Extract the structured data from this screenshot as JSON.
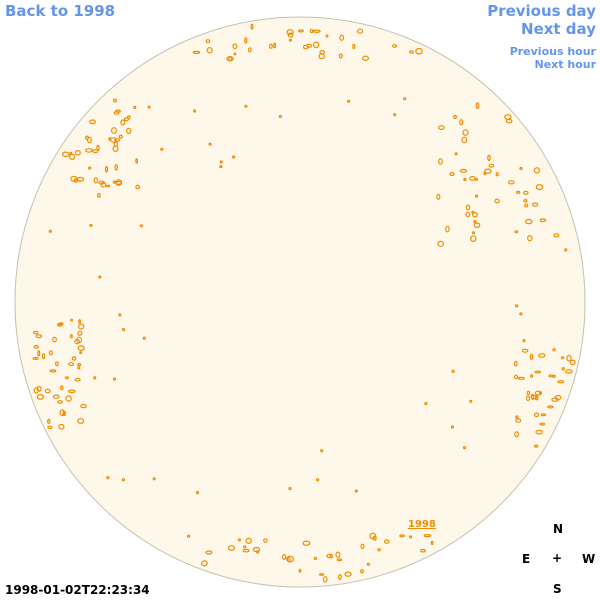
{
  "navigation": {
    "back": "Back to 1998",
    "previous_day": "Previous day",
    "next_day": "Next day",
    "previous_hour": "Previous hour",
    "next_hour": "Next hour"
  },
  "timestamp": "1998-01-02T22:23:34",
  "compass": {
    "north": "N",
    "east": "E",
    "center": "+",
    "west": "W",
    "south": "S"
  },
  "disk_label": "1998"
}
